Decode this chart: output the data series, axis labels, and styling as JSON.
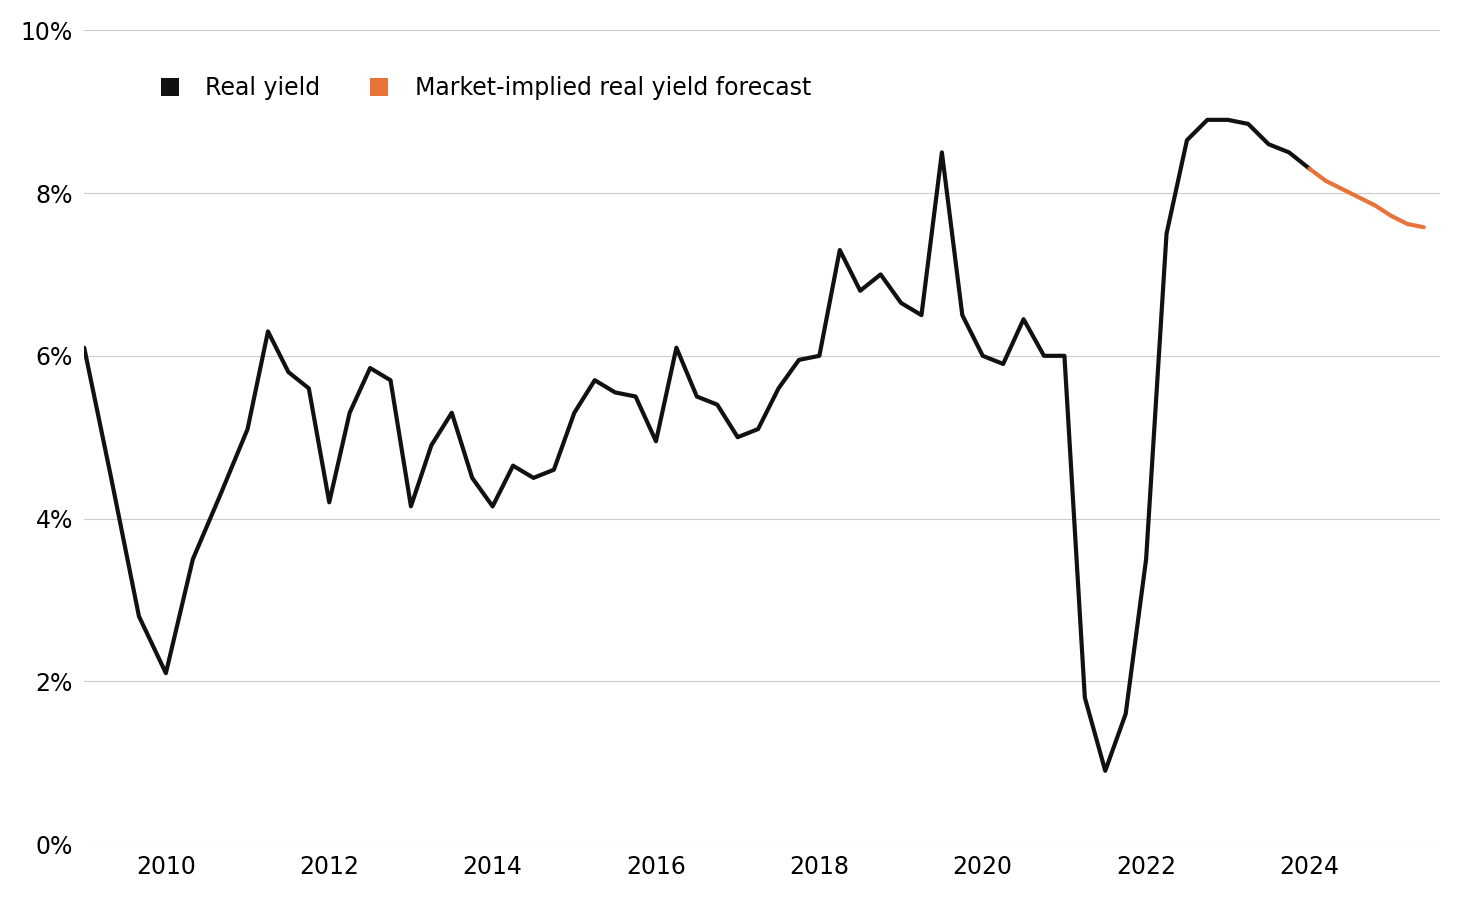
{
  "black_x": [
    2009.0,
    2009.33,
    2009.67,
    2010.0,
    2010.33,
    2010.67,
    2011.0,
    2011.25,
    2011.5,
    2011.75,
    2012.0,
    2012.25,
    2012.5,
    2012.75,
    2013.0,
    2013.25,
    2013.5,
    2013.75,
    2014.0,
    2014.25,
    2014.5,
    2014.75,
    2015.0,
    2015.25,
    2015.5,
    2015.75,
    2016.0,
    2016.25,
    2016.5,
    2016.75,
    2017.0,
    2017.25,
    2017.5,
    2017.75,
    2018.0,
    2018.25,
    2018.5,
    2018.75,
    2019.0,
    2019.25,
    2019.5,
    2019.75,
    2020.0,
    2020.25,
    2020.5,
    2020.75,
    2021.0,
    2021.25,
    2021.5,
    2021.75,
    2022.0,
    2022.25,
    2022.5,
    2022.75,
    2023.0,
    2023.25,
    2023.5,
    2023.75,
    2024.0
  ],
  "black_y": [
    6.1,
    4.5,
    2.8,
    2.1,
    3.5,
    4.3,
    5.1,
    6.3,
    5.8,
    5.6,
    4.2,
    5.3,
    5.85,
    5.7,
    4.15,
    4.9,
    5.3,
    4.5,
    4.15,
    4.65,
    4.5,
    4.6,
    5.3,
    5.7,
    5.55,
    5.5,
    4.95,
    6.1,
    5.5,
    5.4,
    5.0,
    5.1,
    5.6,
    5.95,
    6.0,
    7.3,
    6.8,
    7.0,
    6.65,
    6.5,
    8.5,
    6.5,
    6.0,
    5.9,
    6.45,
    6.0,
    6.0,
    1.8,
    0.9,
    1.6,
    3.5,
    7.5,
    8.65,
    8.9,
    8.9,
    8.85,
    8.6,
    8.5,
    8.3
  ],
  "orange_x": [
    2024.0,
    2024.2,
    2024.4,
    2024.6,
    2024.8,
    2025.0,
    2025.2,
    2025.4
  ],
  "orange_y": [
    8.3,
    8.15,
    8.05,
    7.95,
    7.85,
    7.72,
    7.62,
    7.58
  ],
  "black_label": "Real yield",
  "orange_label": "Market-implied real yield forecast",
  "black_color": "#111111",
  "orange_color": "#e8733a",
  "background_color": "#ffffff",
  "ylim": [
    0,
    10
  ],
  "yticks": [
    0,
    2,
    4,
    6,
    8,
    10
  ],
  "xlim": [
    2009.0,
    2025.6
  ],
  "xticks": [
    2010,
    2012,
    2014,
    2016,
    2018,
    2020,
    2022,
    2024
  ],
  "grid_color": "#cccccc",
  "line_width": 3.0
}
